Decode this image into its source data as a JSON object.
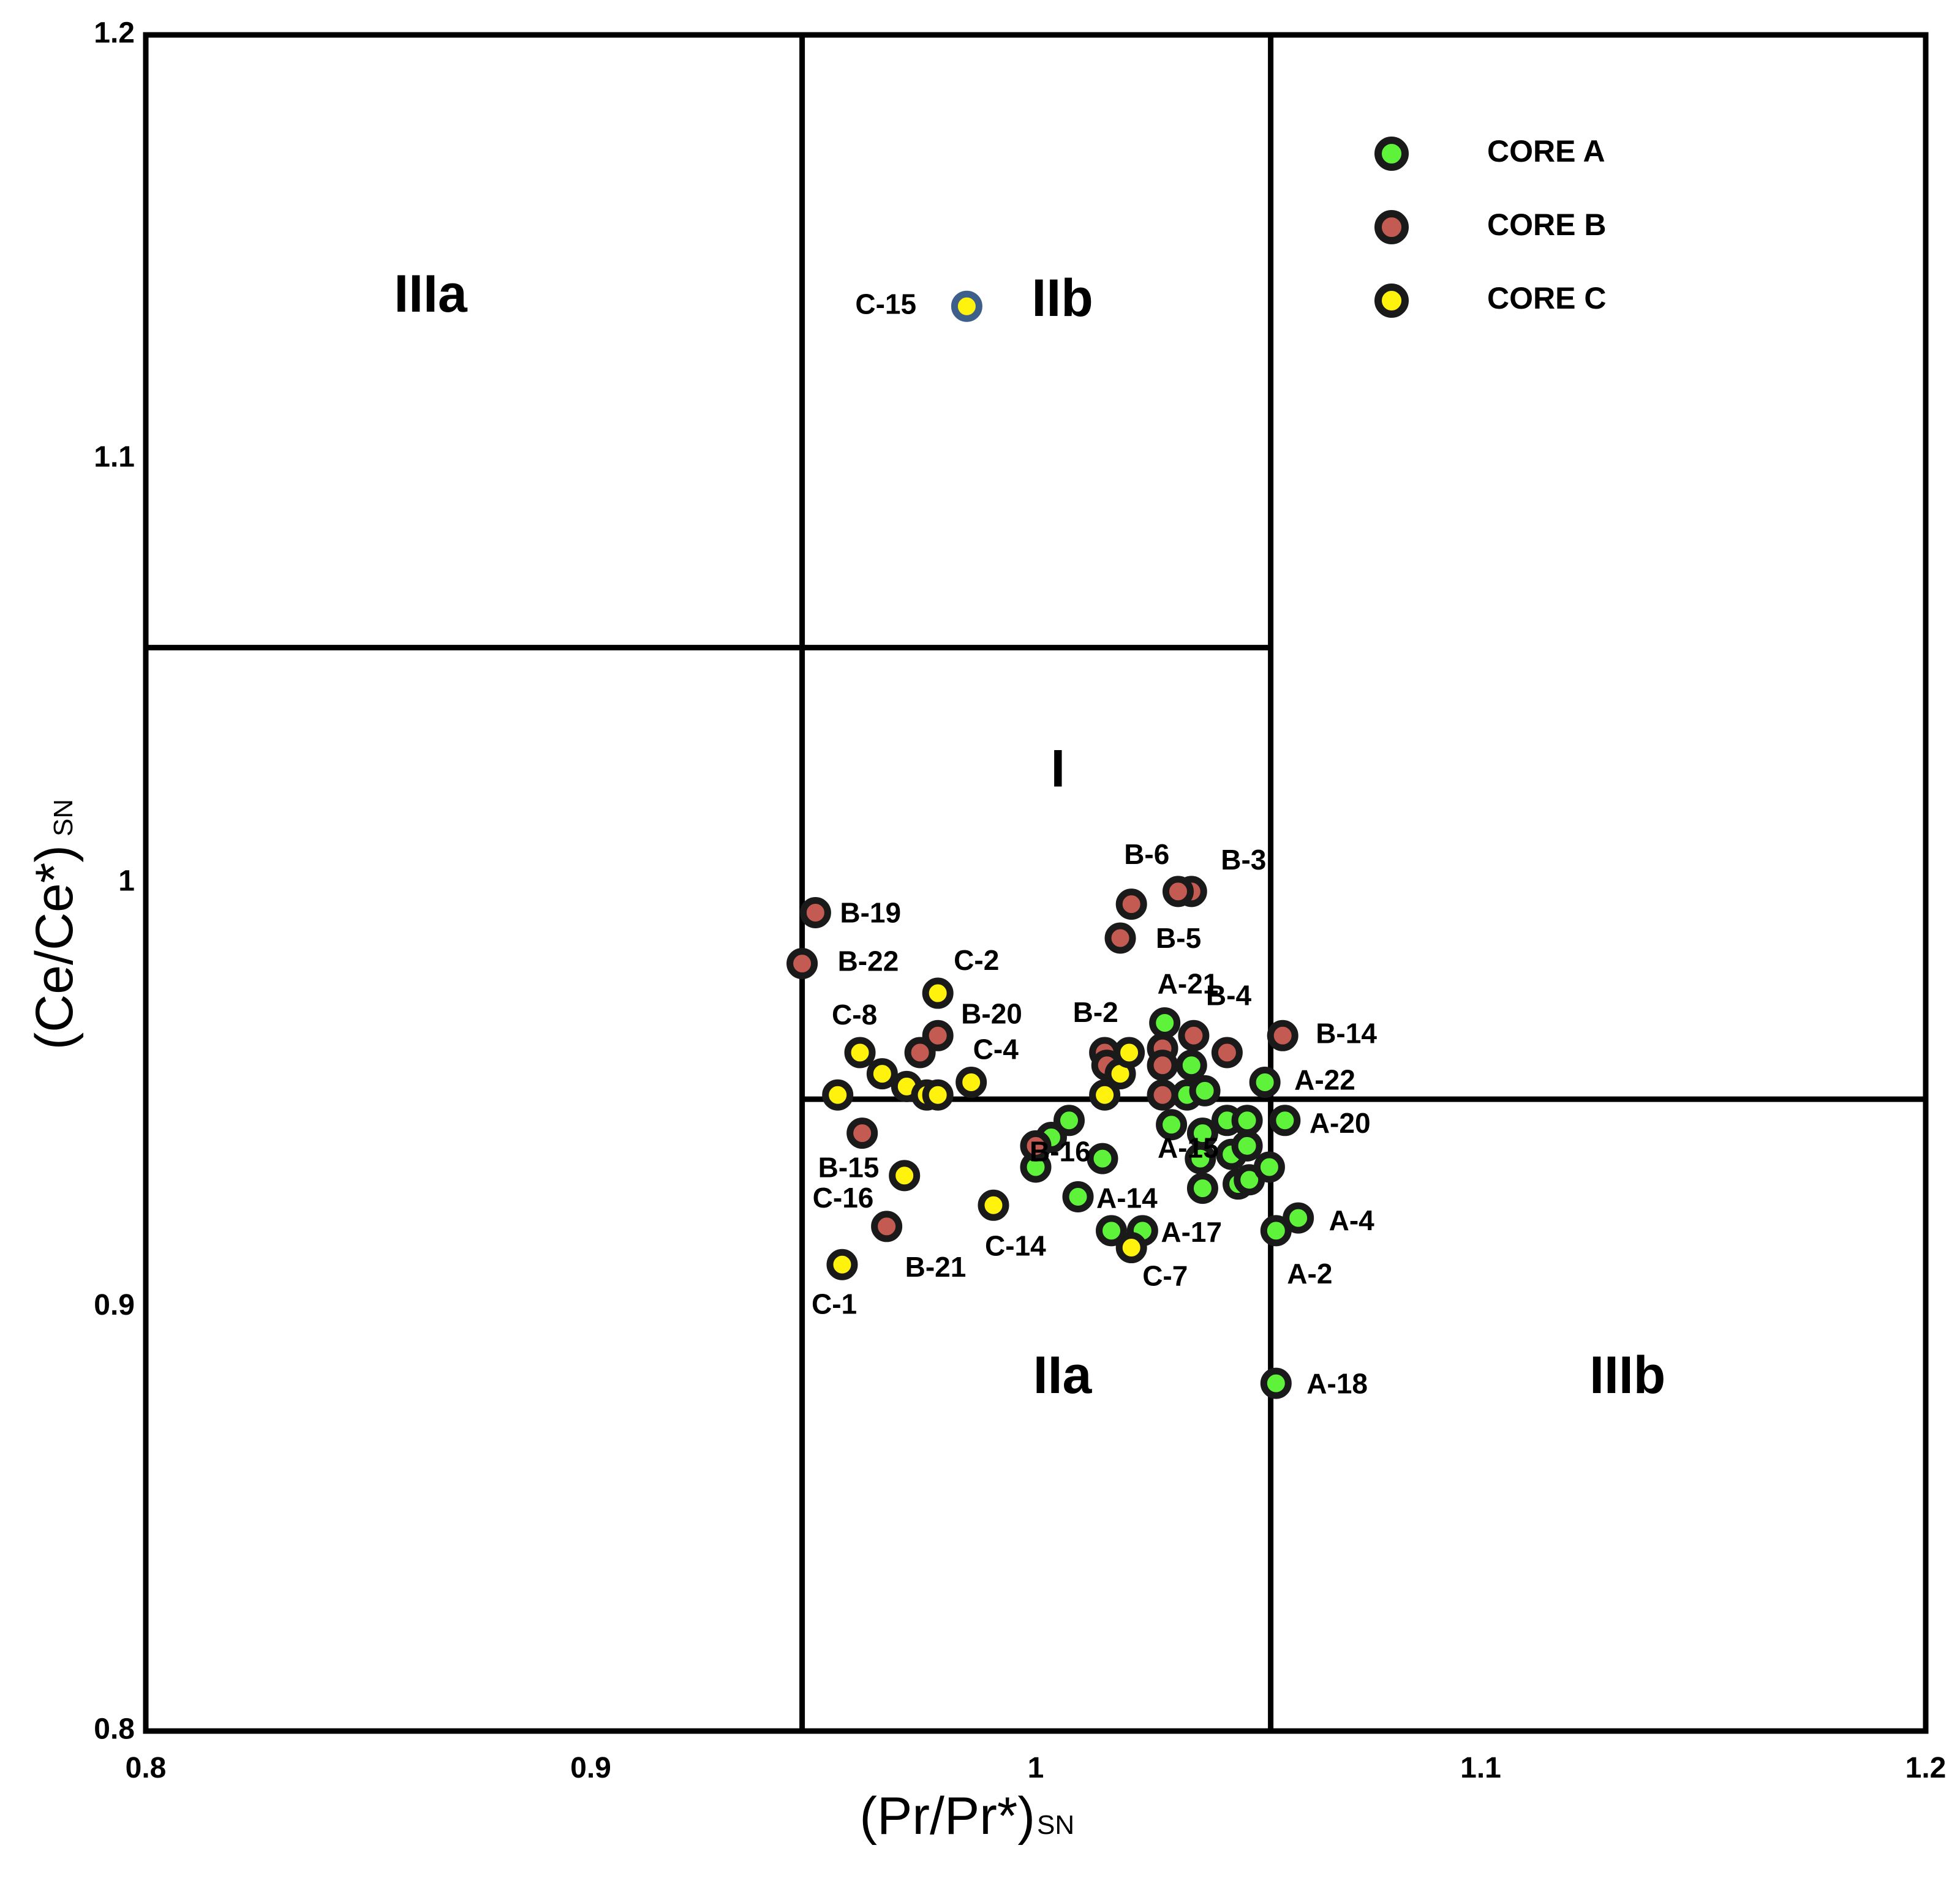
{
  "chart_data": {
    "type": "scatter",
    "title": "",
    "xlabel": "(Pr/Pr*)",
    "xlabel_sub": "SN",
    "ylabel": "(Ce/Ce*)",
    "ylabel_sub": "SN",
    "xlim": [
      0.8,
      1.2
    ],
    "ylim": [
      0.8,
      1.2
    ],
    "x_ticks": [
      "0.8",
      "0.9",
      "1",
      "1.1",
      "1.2"
    ],
    "y_ticks": [
      "0.8",
      "0.9",
      "1",
      "1.1",
      "1.2"
    ],
    "dividers": {
      "vertical": [
        {
          "x": 0.9475,
          "y0": 0.8,
          "y1": 1.2
        },
        {
          "x": 1.0528,
          "y0": 0.8,
          "y1": 1.2
        }
      ],
      "horizontal": [
        {
          "y": 1.0555,
          "x0": 0.8,
          "x1": 1.0528
        },
        {
          "y": 0.949,
          "x0": 0.9475,
          "x1": 1.2
        }
      ]
    },
    "regions": [
      {
        "name": "IIIa",
        "x": 0.864,
        "y": 1.138
      },
      {
        "name": "IIb",
        "x": 1.006,
        "y": 1.137
      },
      {
        "name": "I",
        "x": 1.005,
        "y": 1.026
      },
      {
        "name": "IIa",
        "x": 1.006,
        "y": 0.883
      },
      {
        "name": "IIIb",
        "x": 1.133,
        "y": 0.883
      }
    ],
    "legend": [
      {
        "name": "CORE A",
        "color": "#5EF23A"
      },
      {
        "name": "CORE B",
        "color": "#C35B52"
      },
      {
        "name": "CORE C",
        "color": "#FFF20D"
      }
    ],
    "series": [
      {
        "name": "CORE A",
        "color": "#5EF23A",
        "points": [
          {
            "x": 1.029,
            "y": 0.967,
            "label": "A-21"
          },
          {
            "x": 1.0515,
            "y": 0.953,
            "label": "A-22"
          },
          {
            "x": 1.056,
            "y": 0.944,
            "label": "A-20"
          },
          {
            "x": 1.015,
            "y": 0.935,
            "label": "A-15"
          },
          {
            "x": 1.0095,
            "y": 0.926,
            "label": "A-14"
          },
          {
            "x": 1.024,
            "y": 0.918,
            "label": "A-17"
          },
          {
            "x": 1.059,
            "y": 0.921,
            "label": "A-4"
          },
          {
            "x": 1.054,
            "y": 0.918,
            "label": "A-2"
          },
          {
            "x": 1.054,
            "y": 0.882,
            "label": "A-18"
          },
          {
            "x": 1.0,
            "y": 0.933,
            "label": ""
          },
          {
            "x": 1.0035,
            "y": 0.94,
            "label": ""
          },
          {
            "x": 1.0075,
            "y": 0.944,
            "label": ""
          },
          {
            "x": 1.017,
            "y": 0.918,
            "label": ""
          },
          {
            "x": 1.0305,
            "y": 0.943,
            "label": ""
          },
          {
            "x": 1.034,
            "y": 0.95,
            "label": ""
          },
          {
            "x": 1.035,
            "y": 0.957,
            "label": ""
          },
          {
            "x": 1.038,
            "y": 0.951,
            "label": ""
          },
          {
            "x": 1.0375,
            "y": 0.941,
            "label": ""
          },
          {
            "x": 1.037,
            "y": 0.935,
            "label": ""
          },
          {
            "x": 1.0375,
            "y": 0.928,
            "label": ""
          },
          {
            "x": 1.043,
            "y": 0.944,
            "label": ""
          },
          {
            "x": 1.044,
            "y": 0.936,
            "label": ""
          },
          {
            "x": 1.0455,
            "y": 0.929,
            "label": ""
          },
          {
            "x": 1.0475,
            "y": 0.944,
            "label": ""
          },
          {
            "x": 1.0475,
            "y": 0.938,
            "label": ""
          },
          {
            "x": 1.048,
            "y": 0.93,
            "label": ""
          },
          {
            "x": 1.0525,
            "y": 0.933,
            "label": ""
          }
        ]
      },
      {
        "name": "CORE B",
        "color": "#C35B52",
        "points": [
          {
            "x": 1.0215,
            "y": 0.995,
            "label": "B-6"
          },
          {
            "x": 1.035,
            "y": 0.998,
            "label": "B-3"
          },
          {
            "x": 1.019,
            "y": 0.987,
            "label": "B-5"
          },
          {
            "x": 0.9505,
            "y": 0.993,
            "label": "B-19"
          },
          {
            "x": 0.9475,
            "y": 0.981,
            "label": "B-22"
          },
          {
            "x": 0.978,
            "y": 0.964,
            "label": "B-20"
          },
          {
            "x": 1.0155,
            "y": 0.96,
            "label": "B-2"
          },
          {
            "x": 1.0355,
            "y": 0.964,
            "label": "B-4"
          },
          {
            "x": 1.0555,
            "y": 0.964,
            "label": "B-14"
          },
          {
            "x": 0.961,
            "y": 0.941,
            "label": "B-15"
          },
          {
            "x": 0.9665,
            "y": 0.919,
            "label": "B-21"
          },
          {
            "x": 1.0,
            "y": 0.938,
            "label": "B-16"
          },
          {
            "x": 1.032,
            "y": 0.998,
            "label": ""
          },
          {
            "x": 0.974,
            "y": 0.96,
            "label": ""
          },
          {
            "x": 1.016,
            "y": 0.957,
            "label": ""
          },
          {
            "x": 1.0285,
            "y": 0.961,
            "label": ""
          },
          {
            "x": 1.0285,
            "y": 0.957,
            "label": ""
          },
          {
            "x": 1.0285,
            "y": 0.95,
            "label": ""
          },
          {
            "x": 1.043,
            "y": 0.96,
            "label": ""
          }
        ]
      },
      {
        "name": "CORE C",
        "color": "#FFF20D",
        "points": [
          {
            "x": 0.9845,
            "y": 1.136,
            "label": "C-15",
            "edge": "#3E5F8A"
          },
          {
            "x": 0.978,
            "y": 0.974,
            "label": "C-2"
          },
          {
            "x": 0.9605,
            "y": 0.96,
            "label": "C-8"
          },
          {
            "x": 0.9855,
            "y": 0.953,
            "label": "C-4"
          },
          {
            "x": 0.9705,
            "y": 0.931,
            "label": "C-16"
          },
          {
            "x": 0.9905,
            "y": 0.924,
            "label": "C-14"
          },
          {
            "x": 1.0215,
            "y": 0.914,
            "label": "C-7"
          },
          {
            "x": 0.9565,
            "y": 0.91,
            "label": "C-1"
          },
          {
            "x": 0.9555,
            "y": 0.95,
            "label": ""
          },
          {
            "x": 0.9655,
            "y": 0.955,
            "label": ""
          },
          {
            "x": 0.971,
            "y": 0.952,
            "label": ""
          },
          {
            "x": 0.9755,
            "y": 0.95,
            "label": ""
          },
          {
            "x": 0.978,
            "y": 0.95,
            "label": ""
          },
          {
            "x": 1.0155,
            "y": 0.95,
            "label": ""
          },
          {
            "x": 1.019,
            "y": 0.955,
            "label": ""
          },
          {
            "x": 1.021,
            "y": 0.96,
            "label": ""
          }
        ]
      }
    ]
  }
}
